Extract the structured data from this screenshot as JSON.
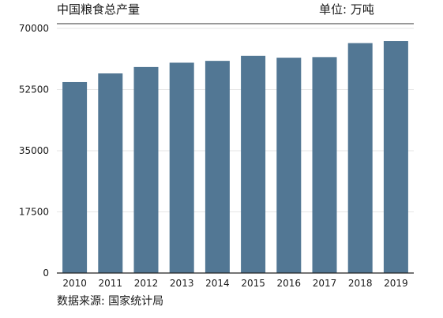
{
  "header": {
    "title": "中国粮食总产量",
    "unit": "单位: 万吨"
  },
  "footer": {
    "source": "数据来源: 国家统计局"
  },
  "chart_data": {
    "type": "bar",
    "title": "中国粮食总产量",
    "unit": "单位: 万吨",
    "xlabel": "",
    "ylabel": "",
    "categories": [
      "2010",
      "2011",
      "2012",
      "2013",
      "2014",
      "2015",
      "2016",
      "2017",
      "2018",
      "2019"
    ],
    "values": [
      54650,
      57120,
      58960,
      60190,
      60710,
      62140,
      61620,
      61790,
      65790,
      66380
    ],
    "ylim": [
      0,
      70000
    ],
    "yticks": [
      0,
      17500,
      35000,
      52500,
      70000
    ],
    "grid": true,
    "legend": "none",
    "bar_color": "#527794"
  }
}
